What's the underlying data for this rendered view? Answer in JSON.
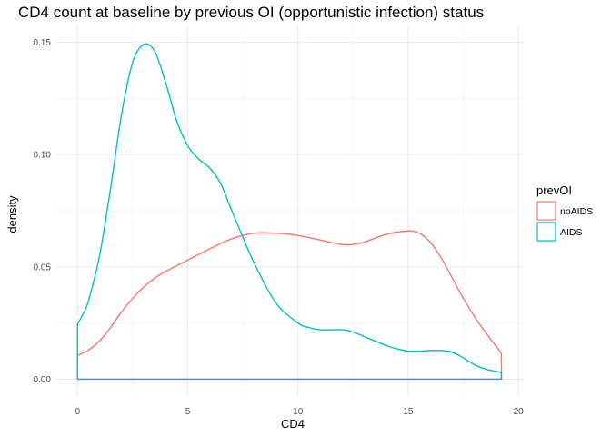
{
  "chart_data": {
    "type": "density",
    "title": "CD4 count at baseline by previous OI (opportunistic infection) status",
    "xlabel": "CD4",
    "ylabel": "density",
    "xlim": [
      -0.96,
      20.2
    ],
    "ylim": [
      -0.0075,
      0.1575
    ],
    "x_ticks": [
      0,
      5,
      10,
      15,
      20
    ],
    "x_tick_labels": [
      "0",
      "5",
      "10",
      "15",
      "20"
    ],
    "y_ticks": [
      0.0,
      0.05,
      0.1,
      0.15
    ],
    "y_tick_labels": [
      "0.00",
      "0.05",
      "0.10",
      "0.15"
    ],
    "grid": true,
    "legend": {
      "title": "prevOI",
      "position": "right"
    },
    "series": [
      {
        "name": "noAIDS",
        "color": "#F8766D",
        "x": [
          0,
          0.5,
          1,
          1.5,
          2,
          2.5,
          3,
          3.5,
          4,
          5,
          6,
          7,
          8,
          9,
          10,
          11,
          12,
          12.5,
          13,
          14,
          15,
          15.5,
          16,
          16.5,
          17,
          17.5,
          18,
          18.5,
          19,
          19.23
        ],
        "y": [
          0.0105,
          0.013,
          0.017,
          0.023,
          0.03,
          0.036,
          0.041,
          0.045,
          0.048,
          0.053,
          0.058,
          0.0625,
          0.065,
          0.065,
          0.064,
          0.062,
          0.06,
          0.06,
          0.061,
          0.0645,
          0.066,
          0.065,
          0.061,
          0.054,
          0.045,
          0.036,
          0.028,
          0.021,
          0.0145,
          0.0115
        ]
      },
      {
        "name": "AIDS",
        "color": "#00BFC4",
        "x": [
          0,
          0.25,
          0.5,
          1,
          1.5,
          2,
          2.5,
          3,
          3.5,
          4,
          4.5,
          5,
          5.5,
          6,
          6.5,
          7,
          8,
          9,
          10,
          10.5,
          11,
          12,
          12.5,
          13,
          14,
          14.5,
          15,
          15.5,
          16,
          16.5,
          17,
          17.5,
          18,
          18.5,
          19,
          19.23
        ],
        "y": [
          0.0245,
          0.029,
          0.035,
          0.055,
          0.085,
          0.118,
          0.141,
          0.149,
          0.146,
          0.132,
          0.115,
          0.104,
          0.098,
          0.094,
          0.087,
          0.075,
          0.052,
          0.034,
          0.025,
          0.023,
          0.022,
          0.022,
          0.021,
          0.019,
          0.015,
          0.0135,
          0.0125,
          0.0125,
          0.0128,
          0.0128,
          0.012,
          0.0095,
          0.0065,
          0.0045,
          0.0035,
          0.003
        ]
      }
    ]
  }
}
